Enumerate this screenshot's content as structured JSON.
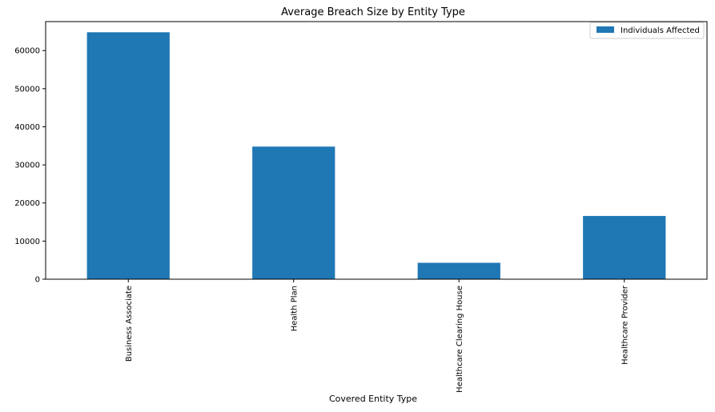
{
  "chart_data": {
    "type": "bar",
    "title": "Average Breach Size by Entity Type",
    "xlabel": "Covered Entity Type",
    "ylabel": "",
    "categories": [
      "Business Associate",
      "Health Plan",
      "Healthcare Clearing House",
      "Healthcare Provider"
    ],
    "series": [
      {
        "name": "Individuals Affected",
        "values": [
          64800,
          34800,
          4300,
          16600
        ],
        "color": "#1f77b4"
      }
    ],
    "ylim": [
      0,
      67600
    ],
    "yticks": [
      0,
      10000,
      20000,
      30000,
      40000,
      50000,
      60000
    ],
    "legend_position": "top-right",
    "grid": false,
    "tick_label_rotation": "vertical"
  }
}
